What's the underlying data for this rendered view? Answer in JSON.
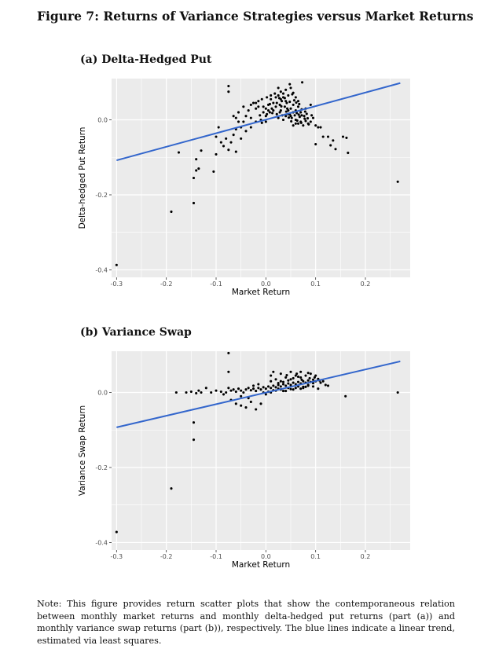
{
  "figure_title": "Figure 7: Returns of Variance Strategies versus Market Returns",
  "panels": [
    {
      "title": "(a) Delta-Hedged Put"
    },
    {
      "title": "(b) Variance Swap"
    }
  ],
  "note": "Note: This figure provides return scatter plots that show the contemporaneous relation between monthly market returns and monthly delta-hedged put returns (part (a)) and monthly variance swap returns (part (b)), respectively. The blue lines indicate a linear trend, estimated via least squares.",
  "colors": {
    "panel_bg": "#ebebeb",
    "grid": "#ffffff",
    "points": "#000000",
    "trend": "#3366cc"
  },
  "chart_data": [
    {
      "type": "scatter",
      "title": "(a) Delta-Hedged Put",
      "xlabel": "Market Return",
      "ylabel": "Delta-hedged Put Return",
      "xlim": [
        -0.31,
        0.29
      ],
      "ylim": [
        -0.42,
        0.11
      ],
      "xticks": [
        -0.3,
        -0.2,
        -0.1,
        0.0,
        0.1,
        0.2
      ],
      "xtick_labels": [
        "-0.3",
        "-0.2",
        "-0.1",
        "0.0",
        "0.1",
        "0.2"
      ],
      "yticks": [
        -0.4,
        -0.2,
        0.0
      ],
      "ytick_labels": [
        "-0.4",
        "-0.2",
        "0.0"
      ],
      "grid": true,
      "trend": {
        "x": [
          -0.3,
          0.27
        ],
        "y": [
          -0.108,
          0.098
        ]
      },
      "points": [
        [
          -0.3,
          -0.387
        ],
        [
          -0.19,
          -0.245
        ],
        [
          -0.175,
          -0.087
        ],
        [
          -0.145,
          -0.155
        ],
        [
          -0.14,
          -0.105
        ],
        [
          -0.13,
          -0.082
        ],
        [
          -0.145,
          -0.222
        ],
        [
          -0.14,
          -0.135
        ],
        [
          -0.135,
          -0.13
        ],
        [
          -0.105,
          -0.138
        ],
        [
          -0.1,
          -0.092
        ],
        [
          -0.085,
          -0.07
        ],
        [
          -0.1,
          -0.045
        ],
        [
          -0.075,
          -0.08
        ],
        [
          -0.07,
          -0.06
        ],
        [
          -0.065,
          -0.04
        ],
        [
          -0.06,
          -0.085
        ],
        [
          -0.06,
          -0.025
        ],
        [
          -0.055,
          -0.005
        ],
        [
          -0.05,
          -0.05
        ],
        [
          -0.045,
          -0.005
        ],
        [
          -0.04,
          0.01
        ],
        [
          -0.035,
          0.025
        ],
        [
          -0.03,
          -0.02
        ],
        [
          -0.03,
          0.005
        ],
        [
          -0.025,
          0.045
        ],
        [
          -0.02,
          -0.005
        ],
        [
          -0.02,
          0.03
        ],
        [
          -0.015,
          0.05
        ],
        [
          -0.012,
          0.012
        ],
        [
          -0.01,
          0.0
        ],
        [
          -0.008,
          -0.008
        ],
        [
          -0.005,
          0.035
        ],
        [
          0.0,
          0.03
        ],
        [
          0.0,
          -0.005
        ],
        [
          0.002,
          0.015
        ],
        [
          0.005,
          0.04
        ],
        [
          0.008,
          0.02
        ],
        [
          0.01,
          0.055
        ],
        [
          0.012,
          0.03
        ],
        [
          0.015,
          0.045
        ],
        [
          0.02,
          0.035
        ],
        [
          0.022,
          0.015
        ],
        [
          0.025,
          0.065
        ],
        [
          0.028,
          0.04
        ],
        [
          0.03,
          0.025
        ],
        [
          0.032,
          0.05
        ],
        [
          0.035,
          0.06
        ],
        [
          0.038,
          0.035
        ],
        [
          0.04,
          0.01
        ],
        [
          0.042,
          0.045
        ],
        [
          0.045,
          0.025
        ],
        [
          0.048,
          0.015
        ],
        [
          0.05,
          0.03
        ],
        [
          0.052,
          0.005
        ],
        [
          0.055,
          0.02
        ],
        [
          0.058,
          0.012
        ],
        [
          0.06,
          0.0
        ],
        [
          0.062,
          0.018
        ],
        [
          0.065,
          -0.01
        ],
        [
          0.068,
          0.008
        ],
        [
          0.07,
          -0.005
        ],
        [
          0.072,
          0.012
        ],
        [
          0.075,
          -0.015
        ],
        [
          0.078,
          0.003
        ],
        [
          0.08,
          -0.003
        ],
        [
          0.085,
          -0.01
        ],
        [
          0.09,
          -0.005
        ],
        [
          0.1,
          -0.015
        ],
        [
          0.095,
          0.005
        ],
        [
          0.105,
          -0.02
        ],
        [
          0.01,
          0.065
        ],
        [
          0.04,
          0.05
        ],
        [
          0.045,
          0.065
        ],
        [
          0.03,
          0.055
        ],
        [
          0.02,
          0.06
        ],
        [
          0.015,
          0.025
        ],
        [
          -0.005,
          0.02
        ],
        [
          0.0,
          0.01
        ],
        [
          0.025,
          0.005
        ],
        [
          0.035,
          0.0
        ],
        [
          0.05,
          0.01
        ],
        [
          0.055,
          0.04
        ],
        [
          0.06,
          0.025
        ],
        [
          0.065,
          0.035
        ],
        [
          0.07,
          0.02
        ],
        [
          0.08,
          0.03
        ],
        [
          0.09,
          0.04
        ],
        [
          0.11,
          -0.02
        ],
        [
          0.115,
          -0.045
        ],
        [
          0.125,
          -0.045
        ],
        [
          0.135,
          -0.055
        ],
        [
          0.155,
          -0.045
        ],
        [
          0.1,
          -0.065
        ],
        [
          0.13,
          -0.068
        ],
        [
          0.14,
          -0.078
        ],
        [
          0.165,
          -0.088
        ],
        [
          0.06,
          -0.01
        ],
        [
          0.055,
          -0.015
        ],
        [
          0.045,
          0.015
        ],
        [
          0.04,
          0.08
        ],
        [
          0.05,
          0.085
        ],
        [
          0.025,
          0.085
        ],
        [
          0.03,
          0.075
        ],
        [
          0.055,
          0.072
        ],
        [
          0.06,
          0.06
        ],
        [
          0.065,
          0.05
        ],
        [
          0.035,
          0.07
        ],
        [
          -0.075,
          0.09
        ],
        [
          -0.075,
          0.075
        ],
        [
          0.048,
          0.095
        ],
        [
          0.073,
          0.1
        ],
        [
          0.265,
          -0.165
        ],
        [
          0.162,
          -0.048
        ],
        [
          -0.02,
          0.045
        ],
        [
          -0.015,
          0.035
        ],
        [
          -0.008,
          0.055
        ],
        [
          0.002,
          0.06
        ],
        [
          0.005,
          0.025
        ],
        [
          0.018,
          0.07
        ],
        [
          0.022,
          0.045
        ],
        [
          0.028,
          0.02
        ],
        [
          0.033,
          0.012
        ],
        [
          0.038,
          0.058
        ],
        [
          0.043,
          0.03
        ],
        [
          0.048,
          0.048
        ],
        [
          0.053,
          0.068
        ],
        [
          0.057,
          0.052
        ],
        [
          0.063,
          -0.002
        ],
        [
          0.067,
          0.042
        ],
        [
          0.072,
          0.028
        ],
        [
          0.077,
          0.01
        ],
        [
          0.082,
          0.016
        ],
        [
          0.086,
          -0.012
        ],
        [
          -0.045,
          0.035
        ],
        [
          -0.03,
          0.04
        ],
        [
          -0.04,
          -0.03
        ],
        [
          -0.05,
          -0.02
        ],
        [
          -0.055,
          0.02
        ],
        [
          -0.065,
          0.01
        ],
        [
          -0.08,
          -0.05
        ],
        [
          -0.09,
          -0.06
        ],
        [
          -0.095,
          -0.02
        ],
        [
          -0.06,
          0.005
        ],
        [
          0.008,
          0.042
        ],
        [
          0.013,
          0.018
        ],
        [
          0.027,
          0.058
        ],
        [
          0.031,
          0.036
        ],
        [
          0.041,
          0.022
        ],
        [
          0.046,
          0.006
        ],
        [
          0.051,
          -0.004
        ],
        [
          0.061,
          0.046
        ],
        [
          0.066,
          0.014
        ],
        [
          0.071,
          -0.008
        ],
        [
          0.079,
          0.022
        ],
        [
          0.084,
          0.004
        ],
        [
          0.092,
          0.012
        ]
      ]
    },
    {
      "type": "scatter",
      "title": "(b) Variance Swap",
      "xlabel": "Market Return",
      "ylabel": "Variance Swap Return",
      "xlim": [
        -0.31,
        0.29
      ],
      "ylim": [
        -0.42,
        0.11
      ],
      "xticks": [
        -0.3,
        -0.2,
        -0.1,
        0.0,
        0.1,
        0.2
      ],
      "xtick_labels": [
        "-0.3",
        "-0.2",
        "-0.1",
        "0.0",
        "0.1",
        "0.2"
      ],
      "yticks": [
        -0.4,
        -0.2,
        0.0
      ],
      "ytick_labels": [
        "-0.4",
        "-0.2",
        "0.0"
      ],
      "grid": true,
      "trend": {
        "x": [
          -0.3,
          0.27
        ],
        "y": [
          -0.093,
          0.083
        ]
      },
      "points": [
        [
          -0.3,
          -0.372
        ],
        [
          -0.19,
          -0.256
        ],
        [
          -0.18,
          0.0
        ],
        [
          -0.16,
          0.0
        ],
        [
          -0.15,
          0.002
        ],
        [
          -0.14,
          -0.002
        ],
        [
          -0.13,
          0.0
        ],
        [
          -0.145,
          -0.08
        ],
        [
          -0.145,
          -0.126
        ],
        [
          -0.135,
          0.005
        ],
        [
          -0.12,
          0.012
        ],
        [
          -0.11,
          0.0
        ],
        [
          -0.1,
          0.005
        ],
        [
          -0.09,
          0.002
        ],
        [
          -0.085,
          -0.005
        ],
        [
          -0.08,
          0.0
        ],
        [
          -0.075,
          0.012
        ],
        [
          -0.07,
          0.005
        ],
        [
          -0.065,
          0.008
        ],
        [
          -0.06,
          0.002
        ],
        [
          -0.055,
          0.01
        ],
        [
          -0.05,
          0.005
        ],
        [
          -0.045,
          0.0
        ],
        [
          -0.04,
          0.008
        ],
        [
          -0.035,
          0.012
        ],
        [
          -0.03,
          0.006
        ],
        [
          -0.025,
          0.01
        ],
        [
          -0.02,
          0.004
        ],
        [
          -0.015,
          0.012
        ],
        [
          -0.01,
          0.008
        ],
        [
          -0.005,
          0.014
        ],
        [
          0.0,
          0.01
        ],
        [
          0.005,
          0.016
        ],
        [
          0.01,
          0.012
        ],
        [
          0.015,
          0.018
        ],
        [
          0.02,
          0.014
        ],
        [
          0.025,
          0.02
        ],
        [
          0.03,
          0.016
        ],
        [
          0.035,
          0.022
        ],
        [
          0.04,
          0.018
        ],
        [
          0.045,
          0.024
        ],
        [
          0.05,
          0.02
        ],
        [
          0.055,
          0.026
        ],
        [
          0.06,
          0.022
        ],
        [
          0.065,
          0.028
        ],
        [
          0.07,
          0.024
        ],
        [
          0.075,
          0.03
        ],
        [
          0.08,
          0.026
        ],
        [
          0.085,
          0.032
        ],
        [
          0.09,
          0.028
        ],
        [
          0.095,
          0.034
        ],
        [
          0.1,
          0.03
        ],
        [
          0.105,
          0.036
        ],
        [
          0.11,
          0.026
        ],
        [
          0.115,
          0.03
        ],
        [
          0.12,
          0.02
        ],
        [
          0.125,
          0.018
        ],
        [
          -0.075,
          0.105
        ],
        [
          -0.075,
          0.055
        ],
        [
          -0.07,
          -0.02
        ],
        [
          -0.06,
          -0.03
        ],
        [
          -0.05,
          -0.035
        ],
        [
          -0.04,
          -0.04
        ],
        [
          -0.03,
          -0.025
        ],
        [
          -0.02,
          -0.045
        ],
        [
          -0.01,
          -0.03
        ],
        [
          -0.035,
          -0.015
        ],
        [
          -0.05,
          -0.01
        ],
        [
          0.0,
          -0.005
        ],
        [
          0.01,
          0.0
        ],
        [
          0.02,
          0.005
        ],
        [
          0.03,
          0.008
        ],
        [
          0.04,
          0.004
        ],
        [
          0.05,
          0.009
        ],
        [
          0.06,
          0.012
        ],
        [
          0.07,
          0.01
        ],
        [
          0.08,
          0.015
        ],
        [
          0.01,
          0.03
        ],
        [
          0.02,
          0.035
        ],
        [
          0.03,
          0.03
        ],
        [
          0.04,
          0.04
        ],
        [
          0.05,
          0.035
        ],
        [
          0.06,
          0.045
        ],
        [
          0.07,
          0.04
        ],
        [
          0.08,
          0.045
        ],
        [
          0.09,
          0.05
        ],
        [
          0.1,
          0.045
        ],
        [
          0.03,
          0.05
        ],
        [
          0.05,
          0.055
        ],
        [
          0.07,
          0.055
        ],
        [
          0.085,
          0.052
        ],
        [
          0.01,
          0.045
        ],
        [
          0.015,
          0.055
        ],
        [
          0.025,
          0.025
        ],
        [
          0.035,
          0.028
        ],
        [
          0.045,
          0.032
        ],
        [
          0.055,
          0.038
        ],
        [
          0.065,
          0.042
        ],
        [
          0.075,
          0.015
        ],
        [
          0.085,
          0.02
        ],
        [
          0.095,
          0.025
        ],
        [
          0.105,
          0.01
        ],
        [
          0.16,
          -0.01
        ],
        [
          0.265,
          0.0
        ],
        [
          -0.025,
          0.018
        ],
        [
          -0.015,
          0.022
        ],
        [
          -0.005,
          0.0
        ],
        [
          0.005,
          0.002
        ],
        [
          0.015,
          0.006
        ],
        [
          0.025,
          0.01
        ],
        [
          0.035,
          0.004
        ],
        [
          0.045,
          0.012
        ],
        [
          0.055,
          0.008
        ],
        [
          0.065,
          0.016
        ],
        [
          0.075,
          0.012
        ],
        [
          0.085,
          0.018
        ],
        [
          0.095,
          0.016
        ],
        [
          0.042,
          0.046
        ],
        [
          0.062,
          0.05
        ],
        [
          0.072,
          0.034
        ],
        [
          0.088,
          0.038
        ],
        [
          0.098,
          0.04
        ],
        [
          0.108,
          0.032
        ]
      ]
    }
  ]
}
